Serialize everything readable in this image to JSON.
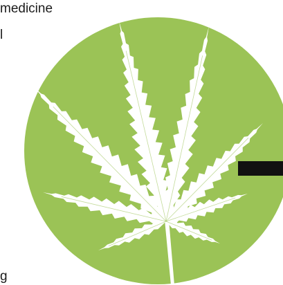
{
  "text_fragments": {
    "top": "medicine",
    "mid": "l",
    "bottom": "g"
  },
  "colors": {
    "circle": "#9bc356",
    "leaf": "#ffffff",
    "bar": "#111111",
    "text": "#1c1c1c",
    "background": "#ffffff"
  },
  "icons": {
    "badge": "green-circle-badge",
    "leaf": "cannabis-leaf-icon",
    "bar": "black-bar-graphic"
  }
}
